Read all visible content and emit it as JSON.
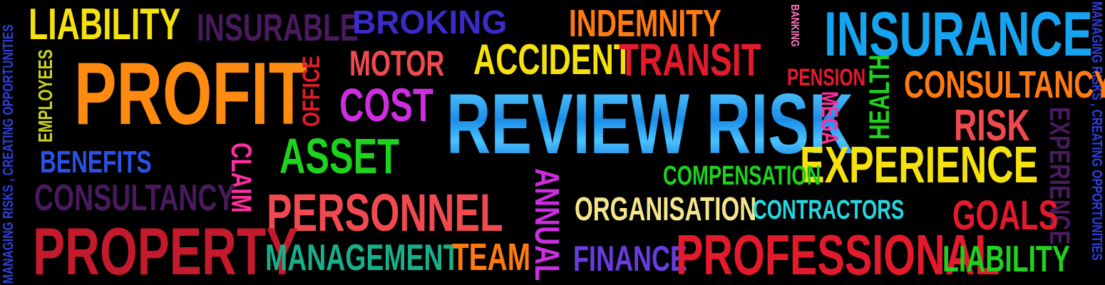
{
  "words": {
    "liability_top": "LIABILITY",
    "insurable": "INSURABLE",
    "broking": "BROKING",
    "indemnity": "INDEMNITY",
    "banking": "BANKING",
    "insurance": "INSURANCE",
    "profit": "PROFIT",
    "office": "OFFICE",
    "motor": "MOTOR",
    "accident": "ACCIDENT",
    "transit": "TRANSIT",
    "pension": "PENSION",
    "health": "HEALTH",
    "consultancy_right": "CONSULTANCY",
    "employees": "EMPLOYEES",
    "cost": "COST",
    "review_risk": "REVIEW RISK",
    "mega": "MEGA",
    "risk": "RISK",
    "experience_vertical": "EXPERIENCE",
    "asset": "ASSET",
    "experience": "EXPERIENCE",
    "benefits": "BENEFITS",
    "claim": "CLAIM",
    "compensation": "COMPENSATION",
    "consultancy_left": "CONSULTANCY",
    "annual": "ANNUAL",
    "personnel": "PERSONNEL",
    "organisation": "ORGANISATION",
    "contractors": "CONTRACTORS",
    "goals": "GOALS",
    "property": "PROPERTY",
    "management": "MANAGEMENT",
    "team": "TEAM",
    "finance": "FINANCE",
    "professional": "PROFESSIONAL",
    "liability_bottom": "LIABILITY",
    "tagline_left": "MANAGING RISKS , CREATING OPPORTUNITIES",
    "tagline_right": "MANAGING RISKS , CREATING OPPORTUNITIES"
  },
  "colors": {
    "background": "#000000",
    "yellow": "#f5e10c",
    "purple": "#4a1a5e",
    "royal_blue": "#3a2cc8",
    "orange": "#ff7a10",
    "sky_blue": "#16a4f0",
    "coral": "#f04a50",
    "magenta": "#cc2ee0",
    "red": "#e31a2c",
    "green": "#1ed21e",
    "pink": "#ff2fa0",
    "cyan": "#25d6e0",
    "teal": "#18b08a",
    "blue": "#2a52e8"
  }
}
